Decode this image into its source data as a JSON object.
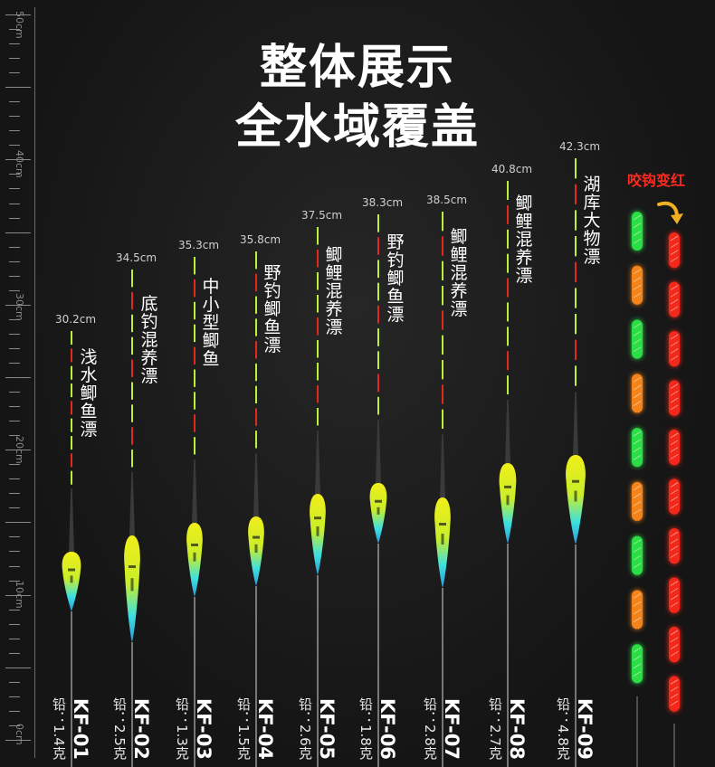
{
  "title_line1": "整体展示",
  "title_line2": "全水域覆盖",
  "ruler": {
    "unit_labels": [
      "50cm",
      "40cm",
      "30cm",
      "20cm",
      "10cm",
      "0cm"
    ]
  },
  "bite_label": "咬钩变红",
  "colors": {
    "background": "#151515",
    "tip_green": "#b8f03a",
    "tip_red": "#e02a1e",
    "body_yellow": "#f2ee1a",
    "body_cyan": "#3ee0e0",
    "glow_green": "#2ee84a",
    "glow_orange": "#ff8a1a",
    "glow_red": "#ff2a1e"
  },
  "floats": [
    {
      "model": "KF-01",
      "weight": "铅：1.4克",
      "height": "30.2cm",
      "name": "浅水鲫鱼漂"
    },
    {
      "model": "KF-02",
      "weight": "铅：2.5克",
      "height": "34.5cm",
      "name": "底钓混养漂"
    },
    {
      "model": "KF-03",
      "weight": "铅：1.3克",
      "height": "35.3cm",
      "name": "中小型鲫鱼"
    },
    {
      "model": "KF-04",
      "weight": "铅：1.5克",
      "height": "35.8cm",
      "name": "野钓鲫鱼漂"
    },
    {
      "model": "KF-05",
      "weight": "铅：2.6克",
      "height": "37.5cm",
      "name": "鲫鲤混养漂"
    },
    {
      "model": "KF-06",
      "weight": "铅：1.8克",
      "height": "38.3cm",
      "name": "野钓鲫鱼漂"
    },
    {
      "model": "KF-07",
      "weight": "铅：2.8克",
      "height": "38.5cm",
      "name": "鲫鲤混养漂"
    },
    {
      "model": "KF-08",
      "weight": "铅：2.7克",
      "height": "40.8cm",
      "name": "鲫鲤混养漂"
    },
    {
      "model": "KF-09",
      "weight": "铅：4.8克",
      "height": "42.3cm",
      "name": "湖库大物漂"
    }
  ]
}
